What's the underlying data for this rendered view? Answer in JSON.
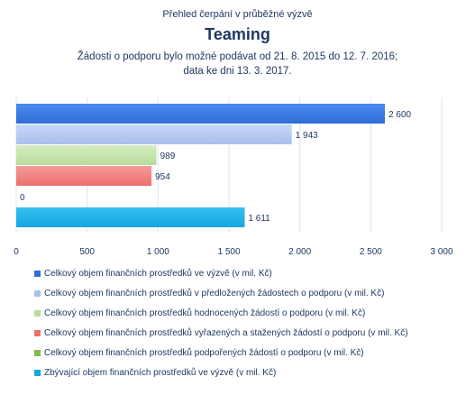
{
  "chart_data": {
    "type": "bar",
    "orientation": "horizontal",
    "supertitle": "Přehled čerpání v průběžné výzvě",
    "title": "Teaming",
    "subtitle_lines": [
      "Žádosti o podporu bylo možné podávat od 21. 8. 2015 do 12. 7. 2016;",
      "data ke dni 13. 3. 2017."
    ],
    "series": [
      {
        "name": "Celkový objem finančních prostředků ve výzvě (v mil. Kč)",
        "value": 2600,
        "label": "2 600",
        "color": "#2f6fd6",
        "color_light": "#4a8bf0"
      },
      {
        "name": "Celkový objem finančních prostředků v předložených žádostech o podporu (v mil. Kč)",
        "value": 1943,
        "label": "1 943",
        "color": "#a9bfee",
        "color_light": "#c9d8f7"
      },
      {
        "name": "Celkový objem finančních prostředků hodnocených žádostí o podporu (v mil. Kč)",
        "value": 989,
        "label": "989",
        "color": "#b9dc9c",
        "color_light": "#d5ecc1"
      },
      {
        "name": "Celkový objem finančních prostředků vyřazených a stažených žádostí o podporu (v mil. Kč)",
        "value": 954,
        "label": "954",
        "color": "#ec6f6b",
        "color_light": "#f59b97"
      },
      {
        "name": "Celkový objem finančních prostředků podpořených žádostí o podporu (v mil. Kč)",
        "value": 0,
        "label": "0",
        "color": "#7fbf4d",
        "color_light": "#9fd46f"
      },
      {
        "name": "Zbývající objem finančních prostředků ve výzvě (v mil. Kč)",
        "value": 1611,
        "label": "1 611",
        "color": "#11a8e0",
        "color_light": "#38c0f0"
      }
    ],
    "xlim": [
      0,
      3000
    ],
    "x_ticks": [
      0,
      500,
      1000,
      1500,
      2000,
      2500,
      3000
    ],
    "x_tick_labels": [
      "0",
      "500",
      "1 000",
      "1 500",
      "2 000",
      "2 500",
      "3 000"
    ],
    "grid": true,
    "legend_position": "bottom"
  }
}
